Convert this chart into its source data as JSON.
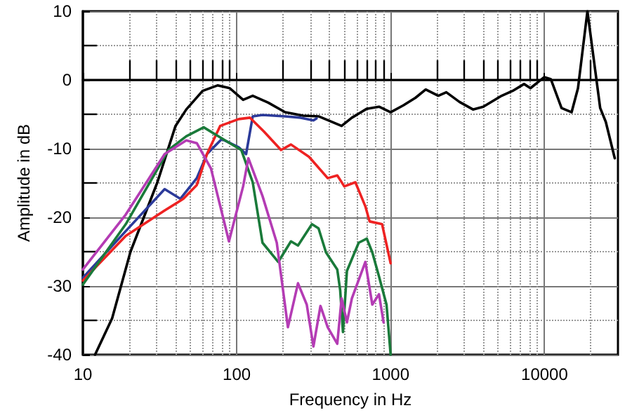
{
  "chart_data": {
    "type": "line",
    "xlabel": "Frequency in Hz",
    "ylabel": "Amplitude in dB",
    "log": "x",
    "grid": true,
    "marker": "none",
    "line_style": "solid",
    "xlim": [
      10,
      30000
    ],
    "xticks": [
      10,
      100,
      1000,
      10000
    ],
    "ylim": [
      -40,
      10
    ],
    "yticks": [
      -40,
      -30,
      -20,
      -10,
      0,
      10
    ],
    "series": [
      {
        "color": "#000000",
        "x": [
          12,
          15.5,
          20.4,
          30.5,
          40,
          47,
          60,
          75,
          90,
          110,
          127,
          160,
          206,
          270,
          340,
          480,
          560,
          700,
          840,
          1000,
          1210,
          1450,
          1690,
          2040,
          2300,
          2800,
          3430,
          4000,
          5270,
          6200,
          7360,
          8100,
          9940,
          11000,
          12900,
          15000,
          16500,
          19000,
          23000,
          25000,
          28600
        ],
        "values": [
          -40,
          -34.7,
          -25,
          -14.9,
          -6.7,
          -4.3,
          -1.6,
          -0.8,
          -1.2,
          -2.9,
          -2.3,
          -3.3,
          -4.7,
          -5.2,
          -5.3,
          -6.7,
          -5.5,
          -4.2,
          -3.9,
          -4.7,
          -3.7,
          -2.6,
          -1.4,
          -2.3,
          -1.8,
          -3.2,
          -4.3,
          -3.9,
          -2.3,
          -1.6,
          -0.6,
          -1.2,
          0.4,
          0.1,
          -4.1,
          -4.7,
          -1.2,
          10,
          -4.1,
          -6.1,
          -11.4
        ]
      },
      {
        "color": "#2b3a9a",
        "x": [
          10,
          19,
          34,
          43,
          55,
          64,
          80,
          103,
          115,
          127,
          147,
          206,
          260,
          315,
          330
        ],
        "values": [
          -28.8,
          -22,
          -15.9,
          -17.3,
          -14.3,
          -10.8,
          -8.6,
          -9.8,
          -10.8,
          -5.3,
          -5.1,
          -5.3,
          -5.5,
          -5.9,
          -5.6
        ]
      },
      {
        "color": "#ee2222",
        "x": [
          10,
          19,
          34,
          45,
          55,
          64,
          78,
          103,
          122,
          150,
          194,
          225,
          295,
          390,
          450,
          500,
          590,
          685,
          730,
          880,
          1000
        ],
        "values": [
          -29.2,
          -22.7,
          -19,
          -17.3,
          -15.3,
          -10.8,
          -6.7,
          -5.7,
          -5.5,
          -7.5,
          -10.2,
          -9.4,
          -11.2,
          -14.3,
          -13.9,
          -15.5,
          -14.9,
          -18.4,
          -20.6,
          -21,
          -26.7
        ]
      },
      {
        "color": "#1a7a3a",
        "x": [
          10,
          19,
          36,
          47,
          61,
          84,
          107,
          127,
          147,
          186,
          225,
          250,
          308,
          340,
          380,
          450,
          470,
          490,
          520,
          620,
          700,
          760,
          840,
          940,
          1000
        ],
        "values": [
          -29.8,
          -21,
          -10.2,
          -8.2,
          -6.9,
          -8.8,
          -10.2,
          -14.9,
          -23.7,
          -26.5,
          -23.5,
          -24.1,
          -21,
          -21.6,
          -25.1,
          -27.6,
          -30.6,
          -36.7,
          -27.8,
          -23.7,
          -23.1,
          -25.1,
          -28.6,
          -32.7,
          -40
        ]
      },
      {
        "color": "#b43cb4",
        "x": [
          10,
          19,
          34,
          47,
          55,
          68,
          89,
          110,
          119,
          147,
          182,
          215,
          250,
          285,
          315,
          350,
          390,
          450,
          480,
          520,
          560,
          685,
          760,
          840,
          900
        ],
        "values": [
          -27.6,
          -19.6,
          -10.8,
          -8.8,
          -9.2,
          -12.9,
          -23.5,
          -15.5,
          -11.4,
          -16.9,
          -23.7,
          -36,
          -29.6,
          -32.7,
          -38.8,
          -32.9,
          -36,
          -38.4,
          -31.8,
          -35.3,
          -31.8,
          -26.5,
          -32.7,
          -31.2,
          -35.3
        ]
      }
    ]
  }
}
